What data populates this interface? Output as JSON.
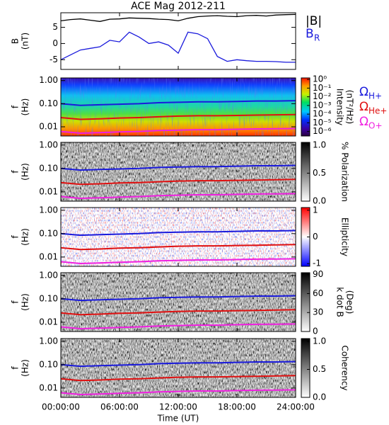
{
  "chart_data": [
    {
      "type": "line",
      "title": "ACE Mag 2012-211",
      "ylabel": [
        "B",
        "(nT)"
      ],
      "x": [
        0,
        1,
        2,
        3,
        4,
        5,
        6,
        7,
        8,
        9,
        10,
        11,
        12,
        13,
        14,
        15,
        16,
        17,
        18,
        19,
        20,
        21,
        22,
        23,
        24
      ],
      "xlim": [
        0,
        24
      ],
      "ylim": [
        -8,
        9.5
      ],
      "yticks": [
        5,
        0,
        -5
      ],
      "series": [
        {
          "name": "|B|",
          "color": "#000000",
          "values": [
            7.0,
            7.4,
            7.6,
            7.2,
            6.8,
            7.5,
            7.6,
            7.9,
            7.8,
            7.7,
            7.5,
            7.4,
            7.0,
            7.8,
            8.3,
            8.5,
            8.6,
            8.4,
            8.3,
            8.6,
            8.7,
            8.5,
            8.8,
            8.9,
            9.0
          ]
        },
        {
          "name": "B",
          "subscript": "R",
          "color": "#1a1adc",
          "values": [
            -5.0,
            -3.5,
            -2.0,
            -1.5,
            -1.0,
            1.0,
            0.5,
            3.5,
            2.0,
            0.0,
            0.5,
            -0.5,
            -3.0,
            3.5,
            3.0,
            1.5,
            -4.0,
            -5.5,
            -5.0,
            -5.3,
            -5.5,
            -5.5,
            -5.6,
            -5.8,
            -5.8
          ]
        }
      ]
    },
    {
      "type": "spectrogram",
      "colormap": "rainbow",
      "ylabel": [
        "f",
        "(Hz)"
      ],
      "ylog": true,
      "x": [
        0,
        2,
        4,
        6,
        8,
        10,
        12,
        14,
        16,
        18,
        20,
        22,
        24
      ],
      "xlim": [
        0,
        24
      ],
      "ylim": [
        0.004,
        1.3
      ],
      "yticks": [
        {
          "value": 1,
          "label": "1.00"
        },
        {
          "value": 0.1,
          "label": "0.10"
        },
        0.01
      ],
      "zlabel": [
        "Intensity",
        "(nT²/Hz)"
      ],
      "zlog": true,
      "zlim": [
        3e-07,
        1.5
      ],
      "zticks": [
        {
          "value": 1,
          "label": "10⁰"
        },
        {
          "value": 0.1,
          "label": "10⁻¹"
        },
        {
          "value": 0.01,
          "label": "10⁻²"
        },
        {
          "value": 0.001,
          "label": "10⁻³"
        },
        {
          "value": 0.0001,
          "label": "10⁻⁴"
        },
        {
          "value": 1e-05,
          "label": "10⁻⁵"
        },
        {
          "value": 1e-06,
          "label": "10⁻⁶"
        }
      ],
      "series": [
        {
          "name": "Ω",
          "subscript": "H+",
          "color": "#1a1adc",
          "values": [
            0.1,
            0.085,
            0.09,
            0.095,
            0.1,
            0.11,
            0.115,
            0.12,
            0.12,
            0.125,
            0.13,
            0.13,
            0.135
          ]
        },
        {
          "name": "Ω",
          "subscript": "He+",
          "color": "#e01010",
          "values": [
            0.025,
            0.021,
            0.022,
            0.024,
            0.025,
            0.027,
            0.029,
            0.03,
            0.03,
            0.031,
            0.032,
            0.033,
            0.034
          ]
        },
        {
          "name": "Ω",
          "subscript": "O+",
          "color": "#f020e0",
          "values": [
            0.0063,
            0.0053,
            0.0056,
            0.006,
            0.0063,
            0.0069,
            0.0072,
            0.0075,
            0.0075,
            0.0078,
            0.0081,
            0.0082,
            0.0084
          ]
        }
      ]
    },
    {
      "type": "spectrogram",
      "colormap": "gray",
      "ylabel": [
        "f",
        "(Hz)"
      ],
      "ylog": true,
      "x": [
        0,
        2,
        4,
        6,
        8,
        10,
        12,
        14,
        16,
        18,
        20,
        22,
        24
      ],
      "xlim": [
        0,
        24
      ],
      "ylim": [
        0.004,
        1.3
      ],
      "yticks": [
        {
          "value": 1,
          "label": "1.00"
        },
        {
          "value": 0.1,
          "label": "0.10"
        },
        0.01
      ],
      "zlabel": [
        "% Polarization"
      ],
      "zlim": [
        0,
        1.05
      ],
      "zticks": [
        {
          "value": 1,
          "label": "1.0"
        },
        0.5,
        {
          "value": 0,
          "label": "0.0"
        }
      ],
      "series": [
        {
          "color": "#1a1adc",
          "values": [
            0.1,
            0.085,
            0.09,
            0.095,
            0.1,
            0.11,
            0.115,
            0.12,
            0.12,
            0.125,
            0.13,
            0.13,
            0.135
          ]
        },
        {
          "color": "#e01010",
          "values": [
            0.025,
            0.021,
            0.022,
            0.024,
            0.025,
            0.027,
            0.029,
            0.03,
            0.03,
            0.031,
            0.032,
            0.033,
            0.034
          ]
        },
        {
          "color": "#f020e0",
          "values": [
            0.0063,
            0.0053,
            0.0056,
            0.006,
            0.0063,
            0.0069,
            0.0072,
            0.0075,
            0.0075,
            0.0078,
            0.0081,
            0.0082,
            0.0084
          ]
        }
      ]
    },
    {
      "type": "spectrogram",
      "colormap": "bwr",
      "ylabel": [
        "f",
        "(Hz)"
      ],
      "ylog": true,
      "x": [
        0,
        2,
        4,
        6,
        8,
        10,
        12,
        14,
        16,
        18,
        20,
        22,
        24
      ],
      "xlim": [
        0,
        24
      ],
      "ylim": [
        0.004,
        1.3
      ],
      "yticks": [
        {
          "value": 1,
          "label": "1.00"
        },
        {
          "value": 0.1,
          "label": "0.10"
        },
        0.01
      ],
      "zlabel": [
        "Ellipticity"
      ],
      "zlim": [
        -1.1,
        1.1
      ],
      "zticks": [
        1,
        0,
        -1
      ],
      "series": [
        {
          "color": "#1a1adc",
          "values": [
            0.1,
            0.085,
            0.09,
            0.095,
            0.1,
            0.11,
            0.115,
            0.12,
            0.12,
            0.125,
            0.13,
            0.13,
            0.135
          ]
        },
        {
          "color": "#e01010",
          "values": [
            0.025,
            0.021,
            0.022,
            0.024,
            0.025,
            0.027,
            0.029,
            0.03,
            0.03,
            0.031,
            0.032,
            0.033,
            0.034
          ]
        },
        {
          "color": "#f020e0",
          "values": [
            0.0063,
            0.0053,
            0.0056,
            0.006,
            0.0063,
            0.0069,
            0.0072,
            0.0075,
            0.0075,
            0.0078,
            0.0081,
            0.0082,
            0.0084
          ]
        }
      ]
    },
    {
      "type": "spectrogram",
      "colormap": "gray",
      "ylabel": [
        "f",
        "(Hz)"
      ],
      "ylog": true,
      "x": [
        0,
        2,
        4,
        6,
        8,
        10,
        12,
        14,
        16,
        18,
        20,
        22,
        24
      ],
      "xlim": [
        0,
        24
      ],
      "ylim": [
        0.004,
        1.3
      ],
      "yticks": [
        {
          "value": 1,
          "label": "1.00"
        },
        {
          "value": 0.1,
          "label": "0.10"
        },
        0.01
      ],
      "zlabel": [
        "k dot B",
        "(Deg)"
      ],
      "zlim": [
        0,
        93
      ],
      "zticks": [
        90,
        60,
        30,
        0
      ],
      "series": [
        {
          "color": "#1a1adc",
          "values": [
            0.1,
            0.085,
            0.09,
            0.095,
            0.1,
            0.11,
            0.115,
            0.12,
            0.12,
            0.125,
            0.13,
            0.13,
            0.135
          ]
        },
        {
          "color": "#e01010",
          "values": [
            0.025,
            0.021,
            0.022,
            0.024,
            0.025,
            0.027,
            0.029,
            0.03,
            0.03,
            0.031,
            0.032,
            0.033,
            0.034
          ]
        },
        {
          "color": "#f020e0",
          "values": [
            0.0063,
            0.0053,
            0.0056,
            0.006,
            0.0063,
            0.0069,
            0.0072,
            0.0075,
            0.0075,
            0.0078,
            0.0081,
            0.0082,
            0.0084
          ]
        }
      ]
    },
    {
      "type": "spectrogram",
      "colormap": "gray",
      "ylabel": [
        "f",
        "(Hz)"
      ],
      "ylog": true,
      "x": [
        0,
        2,
        4,
        6,
        8,
        10,
        12,
        14,
        16,
        18,
        20,
        22,
        24
      ],
      "xlim": [
        0,
        24
      ],
      "ylim": [
        0.004,
        1.3
      ],
      "yticks": [
        {
          "value": 1,
          "label": "1.00"
        },
        {
          "value": 0.1,
          "label": "0.10"
        },
        0.01
      ],
      "zlabel": [
        "Coherency"
      ],
      "zlim": [
        0,
        1.05
      ],
      "zticks": [
        {
          "value": 1,
          "label": "1.0"
        },
        0.5,
        {
          "value": 0,
          "label": "0.0"
        }
      ],
      "xlabel": "Time (UT)",
      "xticks": [
        {
          "value": 0,
          "label": "00:00:00"
        },
        {
          "value": 6,
          "label": "06:00:00"
        },
        {
          "value": 12,
          "label": "12:00:00"
        },
        {
          "value": 18,
          "label": "18:00:00"
        },
        {
          "value": 24,
          "label": "24:00:00"
        }
      ],
      "series": [
        {
          "color": "#1a1adc",
          "values": [
            0.1,
            0.085,
            0.09,
            0.095,
            0.1,
            0.11,
            0.115,
            0.12,
            0.12,
            0.125,
            0.13,
            0.13,
            0.135
          ]
        },
        {
          "color": "#e01010",
          "values": [
            0.025,
            0.021,
            0.022,
            0.024,
            0.025,
            0.027,
            0.029,
            0.03,
            0.03,
            0.031,
            0.032,
            0.033,
            0.034
          ]
        },
        {
          "color": "#f020e0",
          "values": [
            0.0063,
            0.0053,
            0.0056,
            0.006,
            0.0063,
            0.0069,
            0.0072,
            0.0075,
            0.0075,
            0.0078,
            0.0081,
            0.0082,
            0.0084
          ]
        }
      ]
    }
  ]
}
